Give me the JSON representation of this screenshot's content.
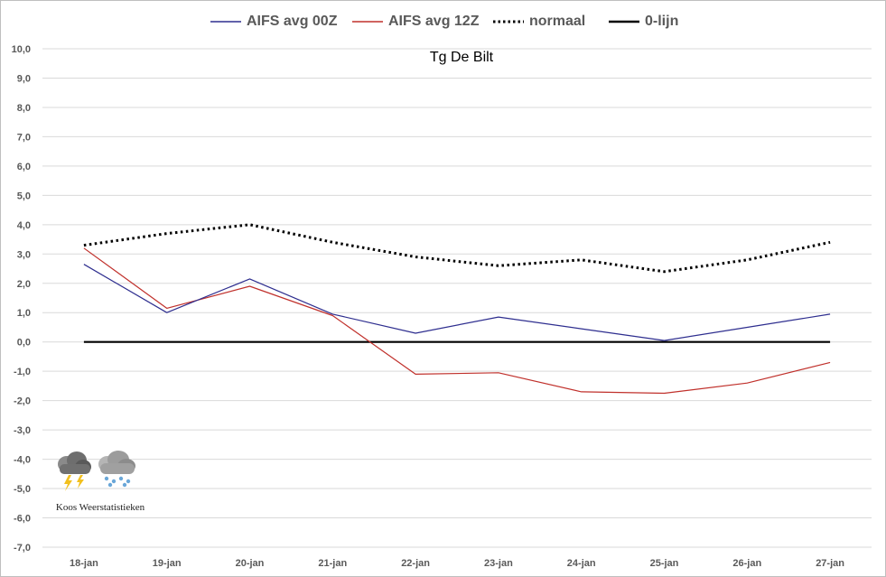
{
  "chart_data": {
    "type": "line",
    "title": "Tg De Bilt",
    "categories": [
      "18-jan",
      "19-jan",
      "20-jan",
      "21-jan",
      "22-jan",
      "23-jan",
      "24-jan",
      "25-jan",
      "26-jan",
      "27-jan"
    ],
    "ylim": [
      -7,
      10
    ],
    "yticks": [
      "10,0",
      "9,0",
      "8,0",
      "7,0",
      "6,0",
      "5,0",
      "4,0",
      "3,0",
      "2,0",
      "1,0",
      "0,0",
      "-1,0",
      "-2,0",
      "-3,0",
      "-4,0",
      "-5,0",
      "-6,0",
      "-7,0"
    ],
    "ytick_values": [
      10,
      9,
      8,
      7,
      6,
      5,
      4,
      3,
      2,
      1,
      0,
      -1,
      -2,
      -3,
      -4,
      -5,
      -6,
      -7
    ],
    "grid": true,
    "legend_position": "top",
    "series": [
      {
        "name": "AIFS avg 00Z",
        "color": "#2e2e8f",
        "style": "solid",
        "values": [
          2.65,
          1.0,
          2.15,
          0.95,
          0.3,
          0.85,
          0.45,
          0.05,
          0.5,
          0.95
        ]
      },
      {
        "name": "AIFS avg 12Z",
        "color": "#c0302b",
        "style": "solid",
        "values": [
          3.2,
          1.15,
          1.9,
          0.9,
          -1.1,
          -1.05,
          -1.7,
          -1.75,
          -1.4,
          -0.7
        ]
      },
      {
        "name": "normaal",
        "color": "#000000",
        "style": "dotted",
        "values": [
          3.3,
          3.7,
          4.0,
          3.4,
          2.9,
          2.6,
          2.8,
          2.4,
          2.8,
          3.4
        ]
      },
      {
        "name": "0-lijn",
        "color": "#000000",
        "style": "solid-thick",
        "values": [
          0,
          0,
          0,
          0,
          0,
          0,
          0,
          0,
          0,
          0
        ]
      }
    ]
  },
  "logo": {
    "caption": "Koos Weerstatistieken",
    "icons": [
      "thunderstorm-cloud-icon",
      "snow-cloud-icon"
    ]
  }
}
